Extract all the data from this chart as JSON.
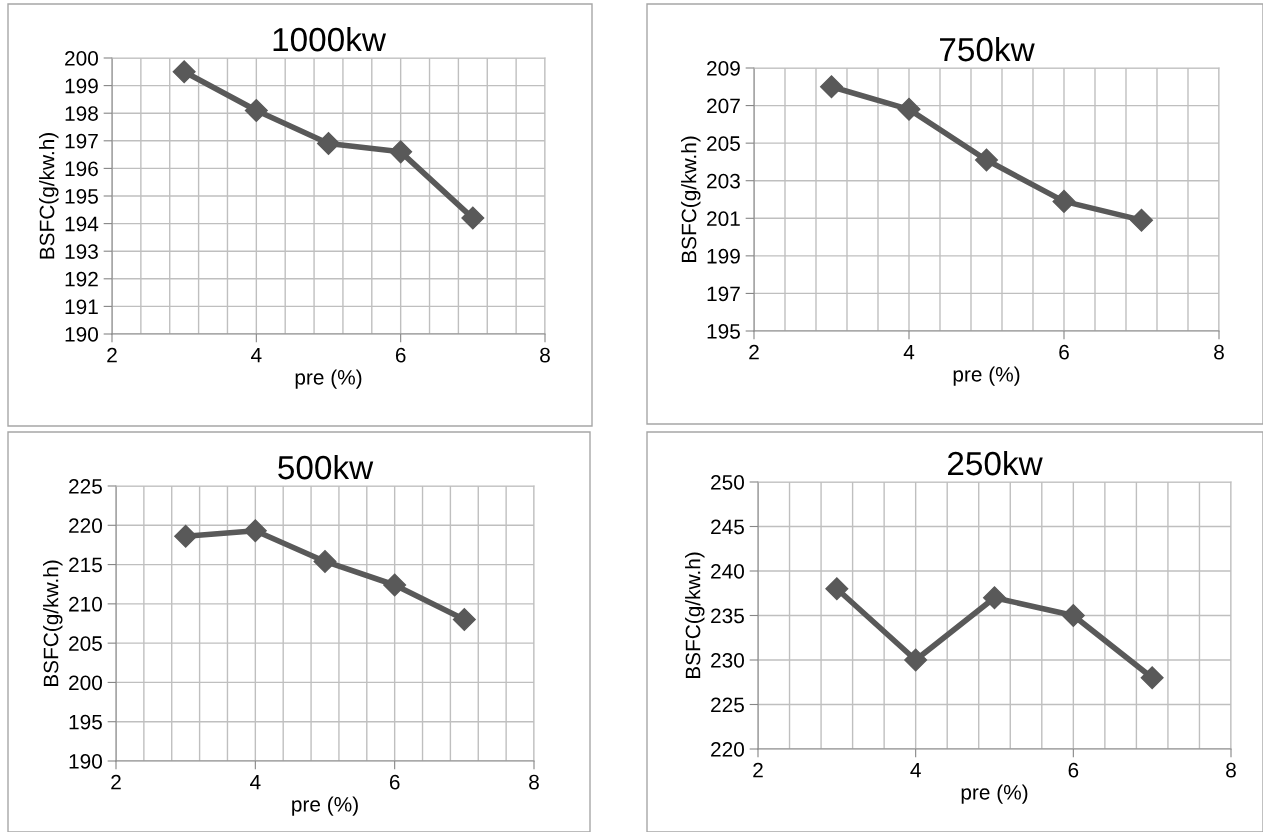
{
  "chart_data": [
    {
      "type": "line",
      "title": "1000kw",
      "xlabel": "pre (%)",
      "ylabel": "BSFC(g/kw.h)",
      "x": [
        3,
        4,
        5,
        6,
        7
      ],
      "series": [
        {
          "color": "#595959",
          "values": [
            199.5,
            198.1,
            196.9,
            196.6,
            194.2
          ]
        }
      ],
      "xlim": [
        2,
        8
      ],
      "xticks": [
        2,
        4,
        6,
        8
      ],
      "ylim": [
        190,
        200
      ],
      "yticks": [
        190,
        191,
        192,
        193,
        194,
        195,
        196,
        197,
        198,
        199,
        200
      ],
      "grid": true,
      "marker": "diamond",
      "line_style": "solid"
    },
    {
      "type": "line",
      "title": "750kw",
      "xlabel": "pre (%)",
      "ylabel": "BSFC(g/kw.h)",
      "x": [
        3,
        4,
        5,
        6,
        7
      ],
      "series": [
        {
          "color": "#595959",
          "values": [
            208.0,
            206.8,
            204.1,
            201.9,
            200.9
          ]
        }
      ],
      "xlim": [
        2,
        8
      ],
      "xticks": [
        2,
        4,
        6,
        8
      ],
      "ylim": [
        195,
        209
      ],
      "yticks": [
        195,
        197,
        199,
        201,
        203,
        205,
        207,
        209
      ],
      "grid": true,
      "marker": "diamond",
      "line_style": "solid"
    },
    {
      "type": "line",
      "title": "500kw",
      "xlabel": "pre (%)",
      "ylabel": "BSFC(g/kw.h)",
      "x": [
        3,
        4,
        5,
        6,
        7
      ],
      "series": [
        {
          "color": "#595959",
          "values": [
            218.6,
            219.3,
            215.4,
            212.4,
            208.0
          ]
        }
      ],
      "xlim": [
        2,
        8
      ],
      "xticks": [
        2,
        4,
        6,
        8
      ],
      "ylim": [
        190,
        225
      ],
      "yticks": [
        190,
        195,
        200,
        205,
        210,
        215,
        220,
        225
      ],
      "grid": true,
      "marker": "diamond",
      "line_style": "solid"
    },
    {
      "type": "line",
      "title": "250kw",
      "xlabel": "pre (%)",
      "ylabel": "BSFC(g/kw.h)",
      "x": [
        3,
        4,
        5,
        6,
        7
      ],
      "series": [
        {
          "color": "#595959",
          "values": [
            238,
            230,
            237,
            235,
            228
          ]
        }
      ],
      "xlim": [
        2,
        8
      ],
      "xticks": [
        2,
        4,
        6,
        8
      ],
      "ylim": [
        220,
        250
      ],
      "yticks": [
        220,
        225,
        230,
        235,
        240,
        245,
        250
      ],
      "grid": true,
      "marker": "diamond",
      "line_style": "solid"
    }
  ]
}
